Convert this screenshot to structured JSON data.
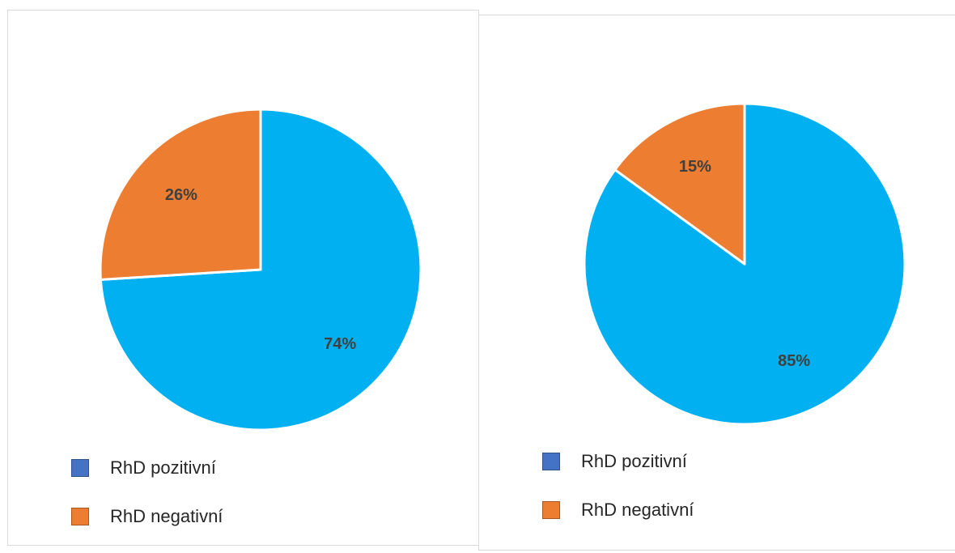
{
  "chart_data": [
    {
      "type": "pie",
      "slices": [
        {
          "label": "RhD pozitivní",
          "value": 74,
          "value_label": "74%",
          "color": "#00B0F0"
        },
        {
          "label": "RhD negativní",
          "value": 26,
          "value_label": "26%",
          "color": "#ED7D31"
        }
      ],
      "legend": {
        "placement": "bottom-left",
        "entries": [
          {
            "label": "RhD pozitivní",
            "swatch_color": "#4472C4"
          },
          {
            "label": "RhD negativní",
            "swatch_color": "#ED7D31"
          }
        ]
      },
      "title": ""
    },
    {
      "type": "pie",
      "slices": [
        {
          "label": "RhD pozitivní",
          "value": 85,
          "value_label": "85%",
          "color": "#00B0F0"
        },
        {
          "label": "RhD negativní",
          "value": 15,
          "value_label": "15%",
          "color": "#ED7D31"
        }
      ],
      "legend": {
        "placement": "bottom-left",
        "entries": [
          {
            "label": "RhD pozitivní",
            "swatch_color": "#4472C4"
          },
          {
            "label": "RhD negativní",
            "swatch_color": "#ED7D31"
          }
        ]
      },
      "title": ""
    }
  ]
}
